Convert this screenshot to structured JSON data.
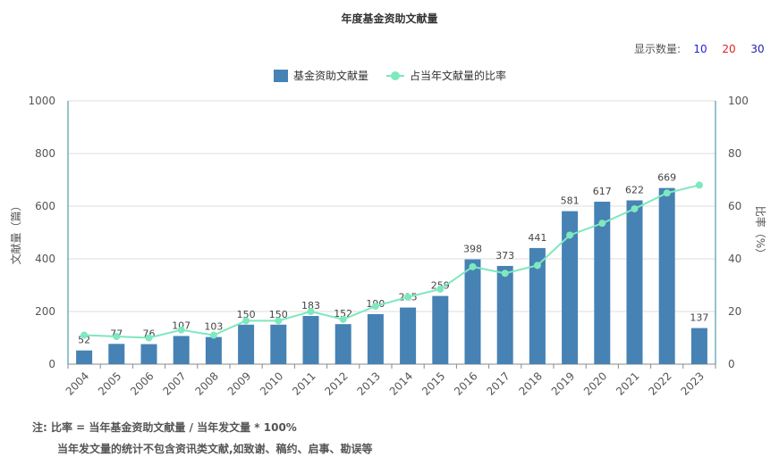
{
  "chart_data": {
    "type": "bar",
    "title": "年度基金资助文献量",
    "categories": [
      "2004",
      "2005",
      "2006",
      "2007",
      "2008",
      "2009",
      "2010",
      "2011",
      "2012",
      "2013",
      "2014",
      "2015",
      "2016",
      "2017",
      "2018",
      "2019",
      "2020",
      "2021",
      "2022",
      "2023"
    ],
    "series": [
      {
        "name": "基金资助文献量",
        "type": "bar",
        "axis": "left",
        "color": "#4682b4",
        "values": [
          52,
          77,
          76,
          107,
          103,
          150,
          150,
          183,
          152,
          190,
          215,
          259,
          398,
          373,
          441,
          581,
          617,
          622,
          669,
          137
        ]
      },
      {
        "name": "占当年文献量的比率",
        "type": "line",
        "axis": "right",
        "color": "#7ee8be",
        "values": [
          11,
          10.5,
          10,
          13,
          11,
          16.5,
          16.5,
          20,
          17,
          22,
          25.5,
          28.5,
          37,
          34.5,
          37.5,
          49,
          53.5,
          59,
          65,
          68
        ]
      }
    ],
    "ylabel": "文献量（篇）",
    "ylim": [
      0,
      1000
    ],
    "yticks": [
      0,
      200,
      400,
      600,
      800,
      1000
    ],
    "y2label": "比率（%）",
    "y2lim": [
      0,
      100
    ],
    "y2ticks": [
      0,
      20,
      40,
      60,
      80,
      100
    ],
    "grid": true,
    "legend_position": "top-center"
  },
  "display_count": {
    "label": "显示数量:",
    "options": [
      {
        "text": "10",
        "color": "#2222dd"
      },
      {
        "text": "20",
        "color": "#dd2222"
      },
      {
        "text": "30",
        "color": "#2222aa"
      }
    ]
  },
  "notes": {
    "line1": "注:   比率 = 当年基金资助文献量 / 当年发文量 * 100%",
    "line2": "当年发文量的统计不包含资讯类文献,如致谢、稿约、启事、勘误等"
  }
}
